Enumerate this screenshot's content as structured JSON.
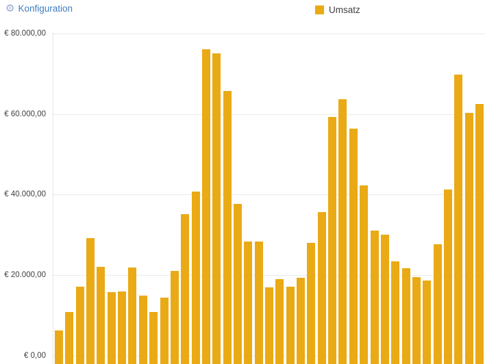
{
  "header": {
    "config_label": "Konfiguration",
    "gear_glyph": "⚙"
  },
  "colors": {
    "bar": "#EAAA15",
    "link_blue": "#3E7DC0",
    "gridline": "#EAEAEA",
    "text": "#3F3F3F"
  },
  "chart_data": {
    "type": "bar",
    "title": "",
    "legend": "Umsatz",
    "series_name": "Umsatz",
    "bar_color": "#EAAA15",
    "ylim": [
      0,
      80000
    ],
    "grid": true,
    "legend_position": "top-center",
    "yticks": [
      {
        "label": "€ 0,00",
        "value": 0
      },
      {
        "label": "€ 20.000,00",
        "value": 20000
      },
      {
        "label": "€ 40.000,00",
        "value": 40000
      },
      {
        "label": "€ 60.000,00",
        "value": 60000
      },
      {
        "label": "€ 80.000,00",
        "value": 80000
      }
    ],
    "values": [
      6300,
      10900,
      17100,
      29200,
      22100,
      15800,
      16000,
      21900,
      14900,
      10900,
      14400,
      21100,
      35100,
      40700,
      76100,
      75000,
      65700,
      37700,
      28400,
      28400,
      17000,
      19100,
      17100,
      19400,
      28000,
      35700,
      59300,
      63700,
      56300,
      42200,
      31100,
      30100,
      23400,
      21800,
      19600,
      18600,
      27700,
      41300,
      69800,
      60200,
      62500
    ]
  }
}
